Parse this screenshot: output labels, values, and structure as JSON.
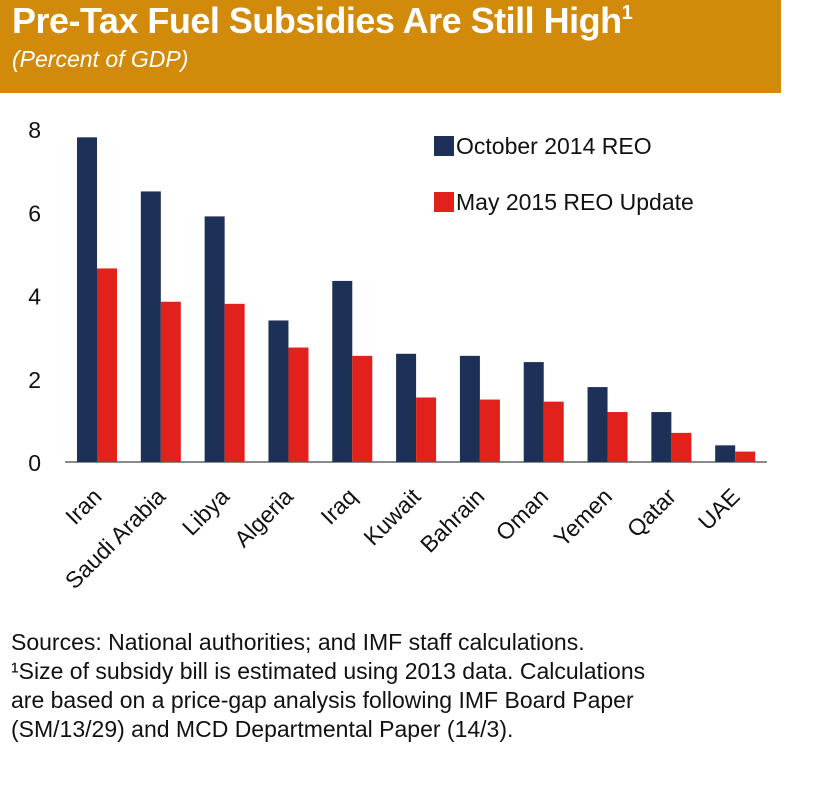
{
  "header": {
    "title": "Pre-Tax Fuel Subsidies Are Still High",
    "title_footnote_mark": "1",
    "subtitle": "(Percent of GDP)",
    "background": "#d18a09"
  },
  "chart_data": {
    "type": "bar",
    "title": "Pre-Tax Fuel Subsidies Are Still High",
    "subtitle": "(Percent of GDP)",
    "xlabel": "",
    "ylabel": "",
    "ylim": [
      0,
      8
    ],
    "yticks": [
      0,
      2,
      4,
      6,
      8
    ],
    "grid": false,
    "legend_position": "top-right",
    "categories": [
      "Iran",
      "Saudi Arabia",
      "Libya",
      "Algeria",
      "Iraq",
      "Kuwait",
      "Bahrain",
      "Oman",
      "Yemen",
      "Qatar",
      "UAE"
    ],
    "series": [
      {
        "name": "October 2014 REO",
        "color": "#1d3057",
        "values": [
          7.8,
          6.5,
          5.9,
          3.4,
          4.35,
          2.6,
          2.55,
          2.4,
          1.8,
          1.2,
          0.4
        ]
      },
      {
        "name": "May 2015 REO Update",
        "color": "#e2201c",
        "values": [
          4.65,
          3.85,
          3.8,
          2.75,
          2.55,
          1.55,
          1.5,
          1.45,
          1.2,
          0.7,
          0.25
        ]
      }
    ]
  },
  "footer": {
    "lines": [
      "Sources:  National authorities; and IMF staff calculations.",
      "¹Size of subsidy bill is estimated using 2013 data. Calculations",
      "are based on a price-gap analysis following IMF Board Paper",
      "(SM/13/29) and MCD Departmental Paper (14/3)."
    ]
  }
}
